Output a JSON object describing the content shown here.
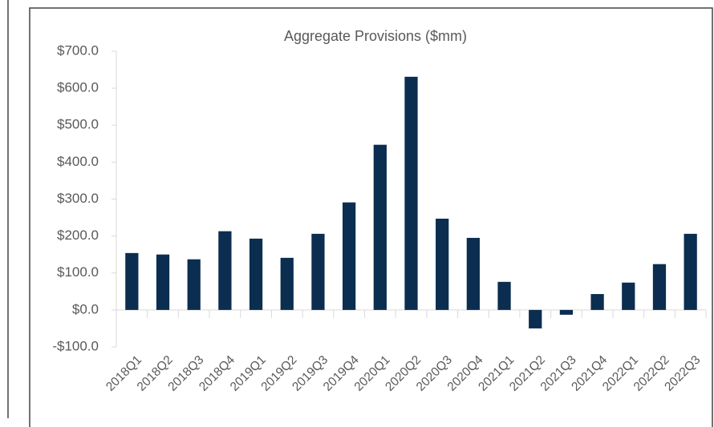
{
  "chart_data": {
    "type": "bar",
    "title": "Aggregate Provisions ($mm)",
    "categories": [
      "2018Q1",
      "2018Q2",
      "2018Q3",
      "2018Q4",
      "2019Q1",
      "2019Q2",
      "2019Q3",
      "2019Q4",
      "2020Q1",
      "2020Q2",
      "2020Q3",
      "2020Q4",
      "2021Q1",
      "2021Q2",
      "2021Q3",
      "2021Q4",
      "2022Q1",
      "2022Q2",
      "2022Q3"
    ],
    "values": [
      154,
      150,
      137,
      213,
      193,
      141,
      206,
      291,
      447,
      631,
      247,
      195,
      76,
      -50,
      -13,
      43,
      74,
      124,
      206
    ],
    "color": "#0b2d50",
    "ylim": [
      -100,
      700
    ],
    "yticks": [
      {
        "value": -100,
        "label": "-$100.0"
      },
      {
        "value": 0,
        "label": "$0.0"
      },
      {
        "value": 100,
        "label": "$100.0"
      },
      {
        "value": 200,
        "label": "$200.0"
      },
      {
        "value": 300,
        "label": "$300.0"
      },
      {
        "value": 400,
        "label": "$400.0"
      },
      {
        "value": 500,
        "label": "$500.0"
      },
      {
        "value": 600,
        "label": "$600.0"
      },
      {
        "value": 700,
        "label": "$700.0"
      }
    ],
    "grid": false
  }
}
